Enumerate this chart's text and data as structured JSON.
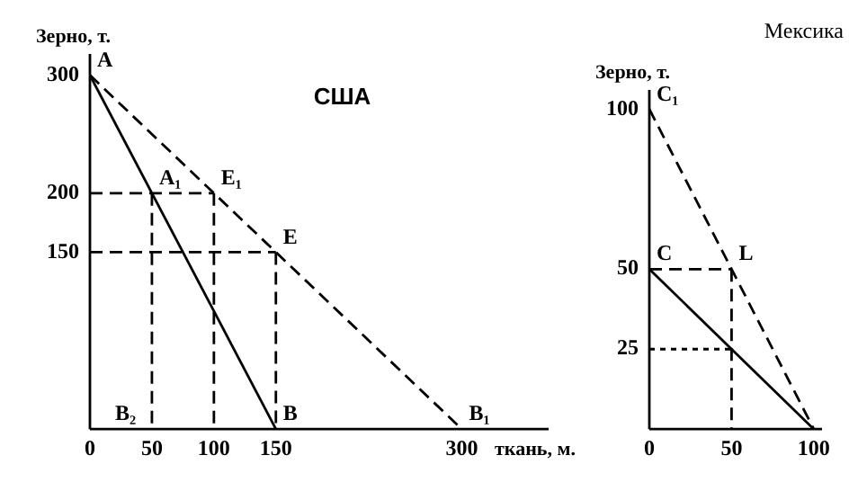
{
  "chart_data": [
    {
      "type": "line",
      "title": "США",
      "xlabel": "ткань, м.",
      "ylabel": "Зерно, т.",
      "xlim": [
        0,
        370
      ],
      "ylim": [
        0,
        318
      ],
      "xticks": [
        0,
        50,
        100,
        150,
        300
      ],
      "yticks": [
        150,
        200,
        300
      ],
      "grid": false,
      "legend": false,
      "marker": "none",
      "series": [
        {
          "color": "#000000",
          "line_style": "solid",
          "x": [
            0,
            150
          ],
          "values": [
            300,
            0
          ]
        },
        {
          "color": "#000000",
          "line_style": "dashed",
          "x": [
            0,
            300
          ],
          "values": [
            300,
            0
          ]
        },
        {
          "color": "#000000",
          "line_style": "dashed",
          "x": [
            0,
            100
          ],
          "values": [
            200,
            200
          ]
        },
        {
          "color": "#000000",
          "line_style": "dashed",
          "x": [
            50,
            50
          ],
          "values": [
            200,
            0
          ]
        },
        {
          "color": "#000000",
          "line_style": "dashed",
          "x": [
            100,
            100
          ],
          "values": [
            200,
            0
          ]
        },
        {
          "color": "#000000",
          "line_style": "dashed",
          "x": [
            0,
            150
          ],
          "values": [
            150,
            150
          ]
        },
        {
          "color": "#000000",
          "line_style": "dashed",
          "x": [
            150,
            150
          ],
          "values": [
            150,
            0
          ]
        }
      ],
      "annotations": [
        {
          "text": "A",
          "x": 0,
          "y": 300
        },
        {
          "text": "A₁",
          "x": 50,
          "y": 200
        },
        {
          "text": "E₁",
          "x": 100,
          "y": 200
        },
        {
          "text": "E",
          "x": 150,
          "y": 150
        },
        {
          "text": "B",
          "x": 150,
          "y": 0
        },
        {
          "text": "B₁",
          "x": 300,
          "y": 0
        },
        "B₂"
      ]
    },
    {
      "type": "line",
      "title": "Мексика",
      "ylabel": "Зерно, т.",
      "xlim": [
        0,
        105
      ],
      "ylim": [
        0,
        106
      ],
      "xticks": [
        0,
        50,
        100
      ],
      "yticks": [
        25,
        50,
        100
      ],
      "grid": false,
      "legend": false,
      "marker": "none",
      "series": [
        {
          "color": "#000000",
          "line_style": "solid",
          "x": [
            0,
            100
          ],
          "values": [
            50,
            0
          ]
        },
        {
          "color": "#000000",
          "line_style": "dashed",
          "x": [
            0,
            100
          ],
          "values": [
            100,
            0
          ]
        },
        {
          "color": "#000000",
          "line_style": "dashed",
          "x": [
            0,
            50
          ],
          "values": [
            50,
            50
          ]
        },
        {
          "color": "#000000",
          "line_style": "dashed",
          "x": [
            50,
            50
          ],
          "values": [
            50,
            0
          ]
        },
        {
          "color": "#000000",
          "line_style": "dotted",
          "x": [
            0,
            50
          ],
          "values": [
            25,
            25
          ]
        }
      ],
      "annotations": [
        {
          "text": "C₁",
          "x": 0,
          "y": 100
        },
        {
          "text": "C",
          "x": 0,
          "y": 50
        },
        {
          "text": "L",
          "x": 50,
          "y": 50
        }
      ]
    }
  ]
}
